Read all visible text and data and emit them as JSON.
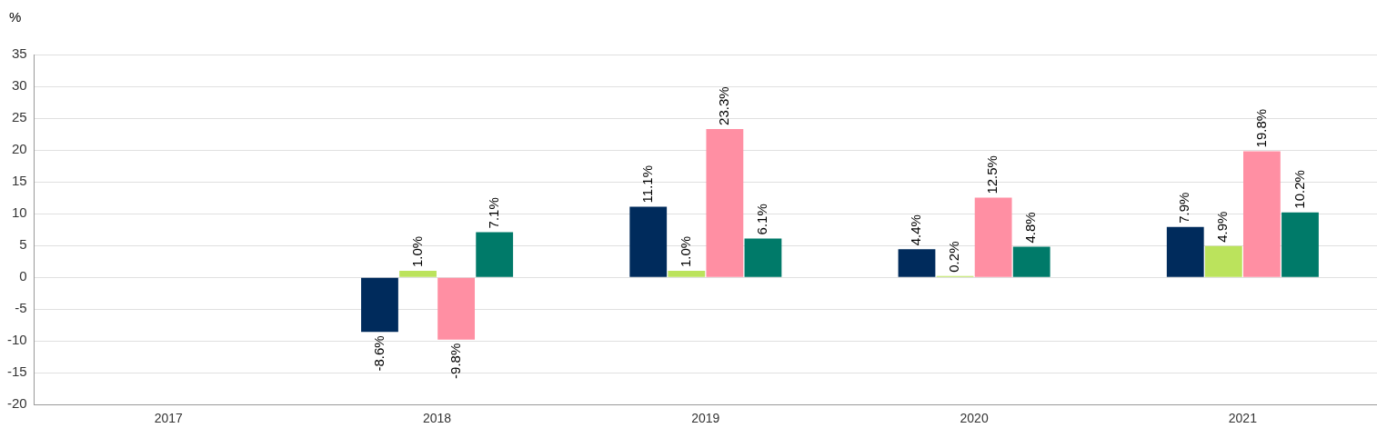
{
  "chart_data": {
    "type": "bar",
    "ylabel": "%",
    "categories": [
      "2017",
      "2018",
      "2019",
      "2020",
      "2021"
    ],
    "series": [
      {
        "color": "#002b5c",
        "values": [
          null,
          -8.6,
          11.1,
          4.4,
          7.9
        ],
        "value_labels": [
          null,
          "-8.6%",
          "11.1%",
          "4.4%",
          "7.9%"
        ]
      },
      {
        "color": "#bbe35c",
        "values": [
          null,
          1.0,
          1.0,
          0.2,
          4.9
        ],
        "value_labels": [
          null,
          "1.0%",
          "1.0%",
          "0.2%",
          "4.9%"
        ]
      },
      {
        "color": "#ff8fa3",
        "values": [
          null,
          -9.8,
          23.3,
          12.5,
          19.8
        ],
        "value_labels": [
          null,
          "-9.8%",
          "23.3%",
          "12.5%",
          "19.8%"
        ]
      },
      {
        "color": "#007a69",
        "values": [
          null,
          7.1,
          6.1,
          4.8,
          10.2
        ],
        "value_labels": [
          null,
          "7.1%",
          "6.1%",
          "4.8%",
          "10.2%"
        ]
      }
    ],
    "ylim": [
      -20,
      35
    ],
    "yticks": [
      -20,
      -15,
      -10,
      -5,
      0,
      5,
      10,
      15,
      20,
      25,
      30,
      35
    ],
    "grid": "y",
    "legend": false
  }
}
